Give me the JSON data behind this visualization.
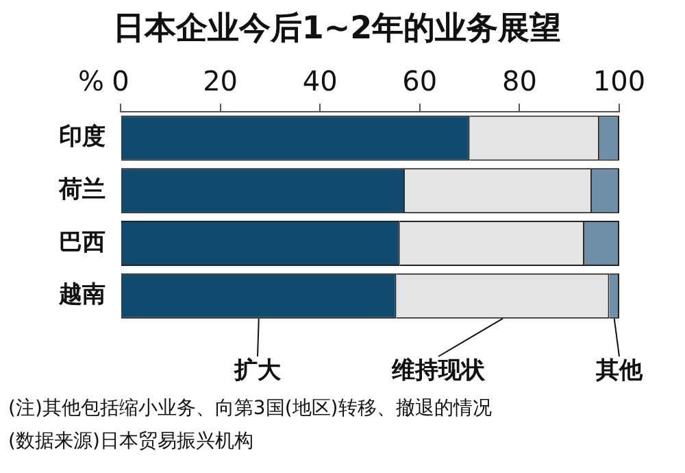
{
  "chart_data": {
    "type": "bar",
    "orientation": "horizontal",
    "stacked": true,
    "title": "日本企业今后1~2年的业务展望",
    "xlabel": "%",
    "categories": [
      "印度",
      "荷兰",
      "巴西",
      "越南"
    ],
    "series": [
      {
        "name": "扩大",
        "color": "#104a6e",
        "values": [
          70,
          57,
          56,
          55.3
        ]
      },
      {
        "name": "维持现状",
        "color": "#e4e4e4",
        "values": [
          26,
          37.5,
          37,
          42.7
        ]
      },
      {
        "name": "其他",
        "color": "#6f8ea8",
        "values": [
          4,
          5.5,
          7,
          2
        ]
      }
    ],
    "xlim": [
      0,
      100
    ],
    "xticks": [
      0,
      20,
      40,
      60,
      80,
      100
    ],
    "grid": false,
    "legend": "bottom",
    "annotations": [
      "(注)其他包括缩小业务、向第3国(地区)转移、撤退的情况",
      "(数据来源)日本贸易振兴机构"
    ]
  }
}
